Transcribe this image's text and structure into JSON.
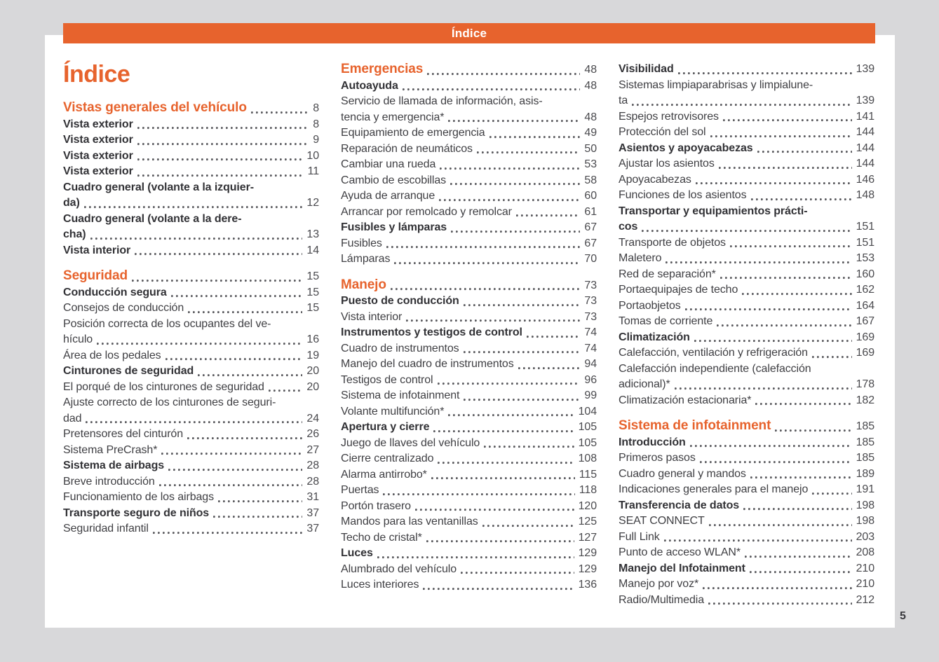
{
  "header": {
    "bar_title": "Índice"
  },
  "title": "Índice",
  "page_number": "5",
  "colors": {
    "accent": "#e7632d",
    "background": "#d8d8da",
    "text": "#3f3f43"
  },
  "columns": [
    {
      "items": [
        {
          "style": "chapter",
          "label": "Vistas generales del vehículo",
          "page": "8"
        },
        {
          "style": "bold",
          "label": "Vista exterior",
          "page": "8"
        },
        {
          "style": "bold",
          "label": "Vista exterior",
          "page": "9"
        },
        {
          "style": "bold",
          "label": "Vista exterior",
          "page": "10"
        },
        {
          "style": "bold",
          "label": "Vista exterior",
          "page": "11"
        },
        {
          "style": "bold",
          "pre": "Cuadro general (volante a la izquier-",
          "label": "da)",
          "page": "12"
        },
        {
          "style": "bold",
          "pre": "Cuadro general (volante a la dere-",
          "label": "cha)",
          "page": "13"
        },
        {
          "style": "bold",
          "label": "Vista interior",
          "page": "14"
        },
        {
          "style": "chapter",
          "label": "Seguridad",
          "page": "15",
          "gap": true
        },
        {
          "style": "bold",
          "label": "Conducción segura",
          "page": "15"
        },
        {
          "style": "normal",
          "label": "Consejos de conducción",
          "page": "15"
        },
        {
          "style": "normal",
          "pre": "Posición correcta de los ocupantes del ve-",
          "label": "hículo",
          "page": "16"
        },
        {
          "style": "normal",
          "label": "Área de los pedales",
          "page": "19"
        },
        {
          "style": "bold",
          "label": "Cinturones de seguridad",
          "page": "20"
        },
        {
          "style": "normal",
          "label": "El porqué de los cinturones de seguridad",
          "page": "20"
        },
        {
          "style": "normal",
          "pre": "Ajuste correcto de los cinturones de seguri-",
          "label": "dad",
          "page": "24"
        },
        {
          "style": "normal",
          "label": "Pretensores del cinturón",
          "page": "26"
        },
        {
          "style": "normal",
          "label": "Sistema PreCrash*",
          "page": "27"
        },
        {
          "style": "bold",
          "label": "Sistema de airbags",
          "page": "28"
        },
        {
          "style": "normal",
          "label": "Breve introducción",
          "page": "28"
        },
        {
          "style": "normal",
          "label": "Funcionamiento de los airbags",
          "page": "31"
        },
        {
          "style": "bold",
          "label": "Transporte seguro de niños",
          "page": "37"
        },
        {
          "style": "normal",
          "label": "Seguridad infantil",
          "page": "37"
        }
      ]
    },
    {
      "items": [
        {
          "style": "chapter",
          "label": "Emergencias",
          "page": "48"
        },
        {
          "style": "bold",
          "label": "Autoayuda",
          "page": "48"
        },
        {
          "style": "normal",
          "pre": "Servicio de llamada de información, asis-",
          "label": "tencia y emergencia*",
          "page": "48"
        },
        {
          "style": "normal",
          "label": "Equipamiento de emergencia",
          "page": "49"
        },
        {
          "style": "normal",
          "label": "Reparación de neumáticos",
          "page": "50"
        },
        {
          "style": "normal",
          "label": "Cambiar una rueda",
          "page": "53"
        },
        {
          "style": "normal",
          "label": "Cambio de escobillas",
          "page": "58"
        },
        {
          "style": "normal",
          "label": "Ayuda de arranque",
          "page": "60"
        },
        {
          "style": "normal",
          "label": "Arrancar por remolcado y remolcar",
          "page": "61"
        },
        {
          "style": "bold",
          "label": "Fusibles y lámparas",
          "page": "67"
        },
        {
          "style": "normal",
          "label": "Fusibles",
          "page": "67"
        },
        {
          "style": "normal",
          "label": "Lámparas",
          "page": "70"
        },
        {
          "style": "chapter",
          "label": "Manejo",
          "page": "73",
          "gap": true
        },
        {
          "style": "bold",
          "label": "Puesto de conducción",
          "page": "73"
        },
        {
          "style": "normal",
          "label": "Vista interior",
          "page": "73"
        },
        {
          "style": "bold",
          "label": "Instrumentos y testigos de control",
          "page": "74"
        },
        {
          "style": "normal",
          "label": "Cuadro de instrumentos",
          "page": "74"
        },
        {
          "style": "normal",
          "label": "Manejo del cuadro de instrumentos",
          "page": "94"
        },
        {
          "style": "normal",
          "label": "Testigos de control",
          "page": "96"
        },
        {
          "style": "normal",
          "label": "Sistema de infotainment",
          "page": "99"
        },
        {
          "style": "normal",
          "label": "Volante multifunción*",
          "page": "104"
        },
        {
          "style": "bold",
          "label": "Apertura y cierre",
          "page": "105"
        },
        {
          "style": "normal",
          "label": "Juego de llaves del vehículo",
          "page": "105"
        },
        {
          "style": "normal",
          "label": "Cierre centralizado",
          "page": "108"
        },
        {
          "style": "normal",
          "label": "Alarma antirrobo*",
          "page": "115"
        },
        {
          "style": "normal",
          "label": "Puertas",
          "page": "118"
        },
        {
          "style": "normal",
          "label": "Portón trasero",
          "page": "120"
        },
        {
          "style": "normal",
          "label": "Mandos para las ventanillas",
          "page": "125"
        },
        {
          "style": "normal",
          "label": "Techo de cristal*",
          "page": "127"
        },
        {
          "style": "bold",
          "label": "Luces",
          "page": "129"
        },
        {
          "style": "normal",
          "label": "Alumbrado del vehículo",
          "page": "129"
        },
        {
          "style": "normal",
          "label": "Luces interiores",
          "page": "136"
        }
      ]
    },
    {
      "items": [
        {
          "style": "bold",
          "label": "Visibilidad",
          "page": "139"
        },
        {
          "style": "normal",
          "pre": "Sistemas limpiaparabrisas y limpialune-",
          "label": "ta",
          "page": "139"
        },
        {
          "style": "normal",
          "label": "Espejos retrovisores",
          "page": "141"
        },
        {
          "style": "normal",
          "label": "Protección del sol",
          "page": "144"
        },
        {
          "style": "bold",
          "label": "Asientos y apoyacabezas",
          "page": "144"
        },
        {
          "style": "normal",
          "label": "Ajustar los asientos",
          "page": "144"
        },
        {
          "style": "normal",
          "label": "Apoyacabezas",
          "page": "146"
        },
        {
          "style": "normal",
          "label": "Funciones de los asientos",
          "page": "148"
        },
        {
          "style": "bold",
          "pre": "Transportar y equipamientos prácti-",
          "label": "cos",
          "page": "151"
        },
        {
          "style": "normal",
          "label": "Transporte de objetos",
          "page": "151"
        },
        {
          "style": "normal",
          "label": "Maletero",
          "page": "153"
        },
        {
          "style": "normal",
          "label": "Red de separación*",
          "page": "160"
        },
        {
          "style": "normal",
          "label": "Portaequipajes de techo",
          "page": "162"
        },
        {
          "style": "normal",
          "label": "Portaobjetos",
          "page": "164"
        },
        {
          "style": "normal",
          "label": "Tomas de corriente",
          "page": "167"
        },
        {
          "style": "bold",
          "label": "Climatización",
          "page": "169"
        },
        {
          "style": "normal",
          "label": "Calefacción, ventilación y refrigeración",
          "page": "169"
        },
        {
          "style": "normal",
          "pre": "Calefacción independiente (calefacción",
          "label": "adicional)*",
          "page": "178"
        },
        {
          "style": "normal",
          "label": "Climatización estacionaria*",
          "page": "182"
        },
        {
          "style": "chapter",
          "label": "Sistema de infotainment",
          "page": "185",
          "gap": true
        },
        {
          "style": "bold",
          "label": "Introducción",
          "page": "185"
        },
        {
          "style": "normal",
          "label": "Primeros pasos",
          "page": "185"
        },
        {
          "style": "normal",
          "label": "Cuadro general y mandos",
          "page": "189"
        },
        {
          "style": "normal",
          "label": "Indicaciones generales para el manejo",
          "page": "191"
        },
        {
          "style": "bold",
          "label": "Transferencia de datos",
          "page": "198"
        },
        {
          "style": "normal",
          "label": "SEAT CONNECT",
          "page": "198"
        },
        {
          "style": "normal",
          "label": "Full Link",
          "page": "203"
        },
        {
          "style": "normal",
          "label": "Punto de acceso WLAN*",
          "page": "208"
        },
        {
          "style": "bold",
          "label": "Manejo del Infotainment",
          "page": "210"
        },
        {
          "style": "normal",
          "label": "Manejo por voz*",
          "page": "210"
        },
        {
          "style": "normal",
          "label": "Radio/Multimedia",
          "page": "212"
        }
      ]
    }
  ]
}
